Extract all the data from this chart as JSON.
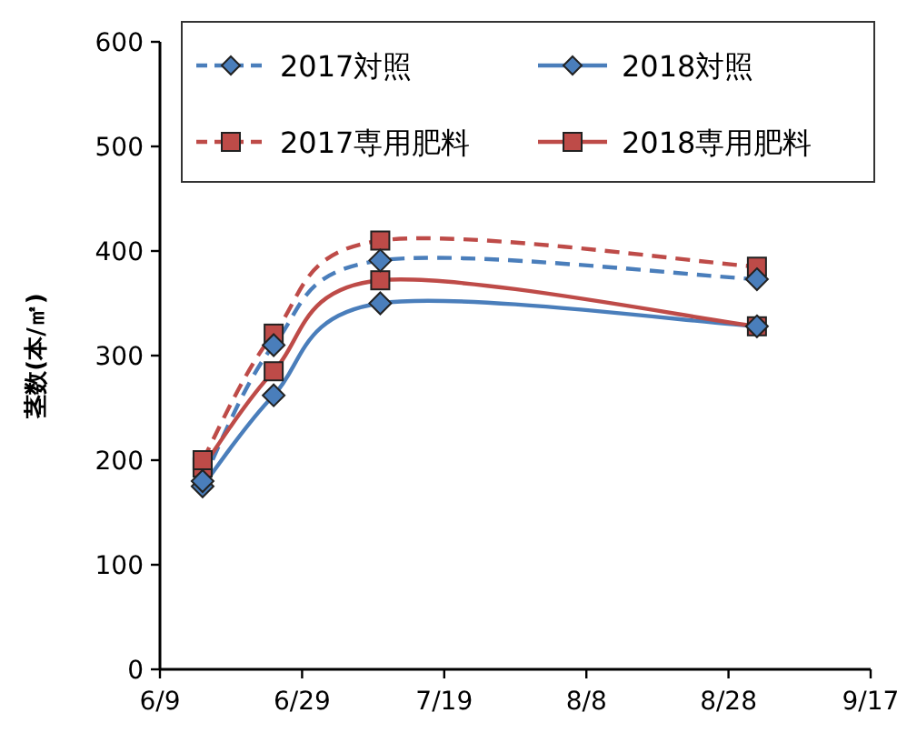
{
  "chart_data": {
    "type": "line",
    "ylabel": "茎数(本/㎡)",
    "x": [
      "--06-15",
      "--06-25",
      "--07-10",
      "--09-01"
    ],
    "xlim": [
      "--06-09",
      "--09-17"
    ],
    "xticks": [
      {
        "value": "--06-09",
        "label": "6/9"
      },
      {
        "value": "--06-29",
        "label": "6/29"
      },
      {
        "value": "--07-19",
        "label": "7/19"
      },
      {
        "value": "--08-08",
        "label": "8/8"
      },
      {
        "value": "--08-28",
        "label": "8/28"
      },
      {
        "value": "--09-17",
        "label": "9/17"
      }
    ],
    "ylim": [
      0,
      600
    ],
    "yticks": [
      0,
      100,
      200,
      300,
      400,
      500,
      600
    ],
    "legend": "top",
    "grid": false,
    "series": [
      {
        "name": "2017対照",
        "color": "#4a7ebb",
        "line_style": "dashed",
        "marker": "diamond",
        "values": [
          180,
          310,
          391,
          373
        ]
      },
      {
        "name": "2018対照",
        "color": "#4a7ebb",
        "line_style": "solid",
        "marker": "diamond",
        "values": [
          175,
          262,
          350,
          328
        ]
      },
      {
        "name": "2017専用肥料",
        "color": "#be4b48",
        "line_style": "dashed",
        "marker": "square",
        "values": [
          200,
          321,
          410,
          385
        ]
      },
      {
        "name": "2018専用肥料",
        "color": "#be4b48",
        "line_style": "solid",
        "marker": "square",
        "values": [
          193,
          285,
          372,
          328
        ]
      }
    ]
  }
}
